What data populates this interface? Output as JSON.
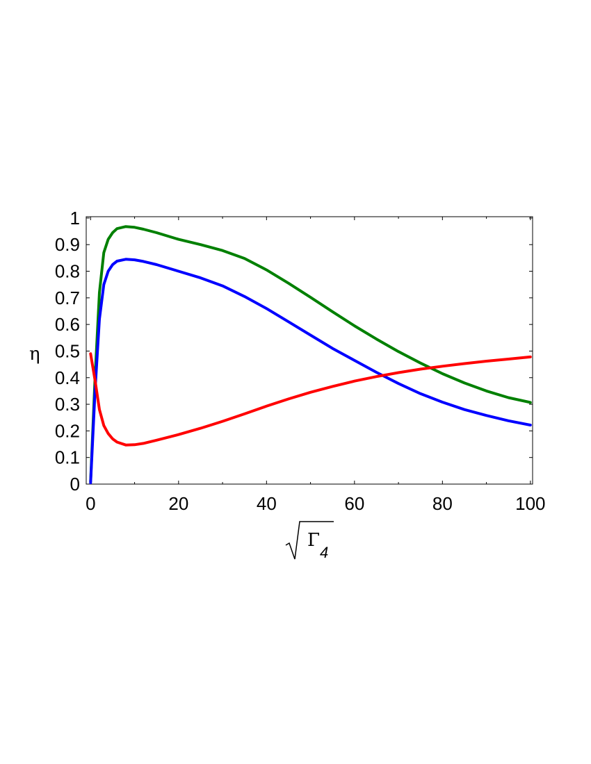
{
  "chart_data": {
    "type": "line",
    "title": "",
    "xlabel": {
      "radicand": "Γ",
      "subscript": "4"
    },
    "ylabel": "η",
    "xlim": [
      -1,
      100.5
    ],
    "ylim": [
      0,
      1.005
    ],
    "xticks": [
      0,
      20,
      40,
      60,
      80,
      100
    ],
    "xtick_labels": [
      "0",
      "20",
      "40",
      "60",
      "80",
      "100"
    ],
    "yticks": [
      0,
      0.1,
      0.2,
      0.3,
      0.4,
      0.5,
      0.6,
      0.7,
      0.8,
      0.9,
      1
    ],
    "ytick_labels": [
      "0",
      "0.1",
      "0.2",
      "0.3",
      "0.4",
      "0.5",
      "0.6",
      "0.7",
      "0.8",
      "0.9",
      "1"
    ],
    "grid": false,
    "legend": "none",
    "series": [
      {
        "color": "#008000",
        "x": [
          0,
          1,
          2,
          3,
          4,
          5,
          6,
          8,
          10,
          12,
          15,
          20,
          25,
          30,
          35,
          40,
          45,
          50,
          55,
          60,
          65,
          70,
          75,
          80,
          85,
          90,
          95,
          100
        ],
        "y": [
          0.01,
          0.4,
          0.72,
          0.87,
          0.92,
          0.945,
          0.96,
          0.968,
          0.965,
          0.958,
          0.945,
          0.92,
          0.9,
          0.878,
          0.848,
          0.805,
          0.755,
          0.702,
          0.648,
          0.595,
          0.545,
          0.498,
          0.455,
          0.415,
          0.38,
          0.35,
          0.325,
          0.307
        ]
      },
      {
        "color": "#0000ff",
        "x": [
          0,
          1,
          2,
          3,
          4,
          5,
          6,
          8,
          10,
          12,
          15,
          20,
          25,
          30,
          35,
          40,
          45,
          50,
          55,
          60,
          65,
          70,
          75,
          80,
          85,
          90,
          95,
          100
        ],
        "y": [
          0.005,
          0.35,
          0.62,
          0.75,
          0.8,
          0.825,
          0.838,
          0.845,
          0.843,
          0.837,
          0.825,
          0.8,
          0.775,
          0.745,
          0.705,
          0.66,
          0.61,
          0.56,
          0.51,
          0.465,
          0.42,
          0.378,
          0.34,
          0.308,
          0.28,
          0.258,
          0.238,
          0.222
        ]
      },
      {
        "color": "#ff0000",
        "x": [
          0,
          1,
          2,
          3,
          4,
          5,
          6,
          8,
          10,
          12,
          15,
          20,
          25,
          30,
          35,
          40,
          45,
          50,
          55,
          60,
          65,
          70,
          75,
          80,
          85,
          90,
          95,
          100
        ],
        "y": [
          0.49,
          0.39,
          0.28,
          0.22,
          0.19,
          0.17,
          0.158,
          0.147,
          0.148,
          0.153,
          0.165,
          0.186,
          0.21,
          0.236,
          0.264,
          0.293,
          0.32,
          0.345,
          0.367,
          0.387,
          0.404,
          0.419,
          0.432,
          0.443,
          0.453,
          0.462,
          0.47,
          0.478
        ]
      }
    ]
  }
}
